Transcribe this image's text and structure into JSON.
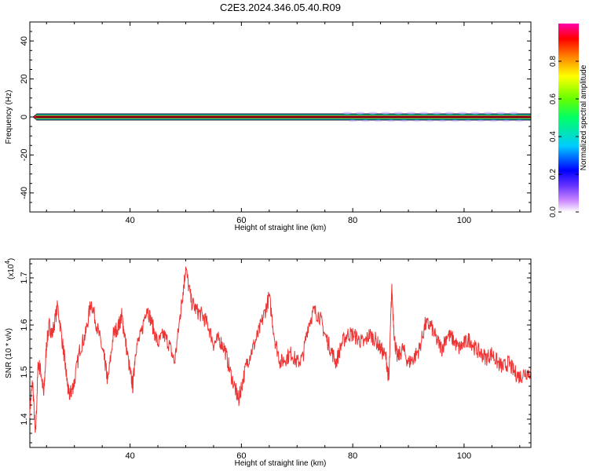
{
  "title": "C2E3.2024.346.05.40.R09",
  "colors": {
    "snr_line": "#ee3333",
    "axis": "#000000"
  },
  "chart_data": [
    {
      "type": "heatmap",
      "xlabel": "Height of straight line (km)",
      "ylabel": "Frequency (Hz)",
      "xlim": [
        22,
        112
      ],
      "ylim": [
        -50,
        50
      ],
      "x_ticks": [
        40,
        60,
        80,
        100
      ],
      "y_ticks": [
        40,
        20,
        0,
        -20,
        -40
      ],
      "x_tick_labels": [
        "40",
        "60",
        "80",
        "100"
      ],
      "y_tick_labels": [
        "40",
        "20",
        "0",
        "-20",
        "-40"
      ],
      "band_center_hz": 0,
      "band_start_km": 23,
      "colorbar": {
        "label": "Normalized spectral amplitude",
        "range": [
          0,
          1
        ],
        "ticks": [
          0.0,
          0.2,
          0.4,
          0.6,
          0.8
        ],
        "tick_labels": [
          "0.0",
          "0.2",
          "0.4",
          "0.6",
          "0.8"
        ],
        "colors": [
          "#ffffff",
          "#cc88ff",
          "#6633ff",
          "#0000ff",
          "#00ccff",
          "#00ff66",
          "#66ff00",
          "#ffff00",
          "#ff8800",
          "#ff0000",
          "#ff00aa"
        ]
      }
    },
    {
      "type": "line",
      "xlabel": "Height of straight line (km)",
      "ylabel": "SNR (10 * v/v)",
      "y_multiplier": "(x10",
      "y_multiplier_exp": "4",
      "y_multiplier_close": ")",
      "xlim": [
        22,
        112
      ],
      "ylim": [
        1.34,
        1.74
      ],
      "x_ticks": [
        40,
        60,
        80,
        100
      ],
      "y_ticks": [
        1.4,
        1.5,
        1.6,
        1.7
      ],
      "x_tick_labels": [
        "40",
        "60",
        "80",
        "100"
      ],
      "y_tick_labels": [
        "1.4",
        "1.5",
        "1.6",
        "1.7"
      ],
      "series": [
        {
          "x": [
            22,
            22.5,
            23,
            23.5,
            24,
            24.5,
            25,
            25.5,
            26,
            27,
            28,
            28.5,
            29,
            29.5,
            30,
            31,
            32,
            33,
            34,
            35,
            35.5,
            36,
            37,
            38,
            38.5,
            39,
            40,
            40.5,
            41,
            42,
            43,
            44,
            45,
            46,
            47,
            48,
            49,
            49.5,
            50,
            51,
            52,
            53,
            54,
            55,
            56,
            57,
            58,
            59,
            59.5,
            60,
            61,
            62,
            63,
            64,
            65,
            66,
            67,
            68,
            69,
            70,
            71,
            72,
            73,
            74,
            75,
            76,
            77,
            78,
            79,
            80,
            81,
            82,
            83,
            84,
            85,
            86,
            86.5,
            87,
            87.5,
            88,
            89,
            90,
            91,
            92,
            93,
            94,
            95,
            96,
            97,
            98,
            99,
            100,
            101,
            102,
            103,
            104,
            105,
            106,
            107,
            108,
            109,
            110,
            111,
            112
          ],
          "y": [
            1.42,
            1.48,
            1.36,
            1.52,
            1.5,
            1.45,
            1.56,
            1.6,
            1.58,
            1.64,
            1.55,
            1.5,
            1.45,
            1.46,
            1.48,
            1.55,
            1.58,
            1.65,
            1.6,
            1.55,
            1.52,
            1.48,
            1.58,
            1.6,
            1.62,
            1.58,
            1.5,
            1.47,
            1.55,
            1.58,
            1.64,
            1.6,
            1.56,
            1.58,
            1.56,
            1.52,
            1.62,
            1.67,
            1.72,
            1.65,
            1.63,
            1.62,
            1.6,
            1.56,
            1.57,
            1.55,
            1.5,
            1.46,
            1.44,
            1.47,
            1.52,
            1.55,
            1.58,
            1.62,
            1.66,
            1.57,
            1.52,
            1.53,
            1.54,
            1.52,
            1.53,
            1.6,
            1.63,
            1.62,
            1.58,
            1.55,
            1.52,
            1.56,
            1.58,
            1.58,
            1.57,
            1.56,
            1.58,
            1.57,
            1.55,
            1.53,
            1.48,
            1.68,
            1.57,
            1.53,
            1.55,
            1.52,
            1.53,
            1.55,
            1.6,
            1.6,
            1.57,
            1.55,
            1.58,
            1.57,
            1.55,
            1.56,
            1.57,
            1.55,
            1.54,
            1.53,
            1.54,
            1.52,
            1.51,
            1.52,
            1.5,
            1.49,
            1.5,
            1.5
          ]
        }
      ]
    }
  ]
}
